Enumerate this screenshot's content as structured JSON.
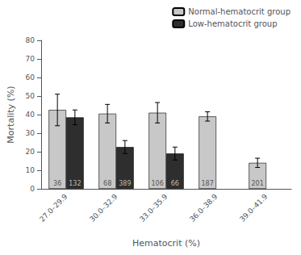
{
  "chart_data": {
    "type": "bar",
    "categories": [
      "27.0–29.9",
      "30.0–32.9",
      "33.0–35.9",
      "36.0–38.9",
      "39.0–41.9"
    ],
    "series": [
      {
        "name": "Normal-hematocrit group",
        "color": "#c8c8c8",
        "values": [
          42.5,
          40.5,
          41.0,
          39.0,
          14.0
        ],
        "errors": [
          8.5,
          5.0,
          5.5,
          2.5,
          2.5
        ],
        "n": [
          "36",
          "68",
          "106",
          "187",
          "201"
        ]
      },
      {
        "name": "Low-hematocrit group",
        "color": "#2e2e2e",
        "values": [
          38.5,
          22.5,
          19.0,
          null,
          null
        ],
        "errors": [
          4.0,
          3.5,
          3.5,
          null,
          null
        ],
        "n": [
          "132",
          "389",
          "66",
          null,
          null
        ]
      }
    ],
    "ylabel": "Mortality (%)",
    "xlabel": "Hematocrit (%)",
    "ylim": [
      0,
      80
    ],
    "yticks": [
      0,
      10,
      20,
      30,
      40,
      50,
      60,
      70,
      80
    ],
    "legend": "upper right",
    "grid": false
  }
}
